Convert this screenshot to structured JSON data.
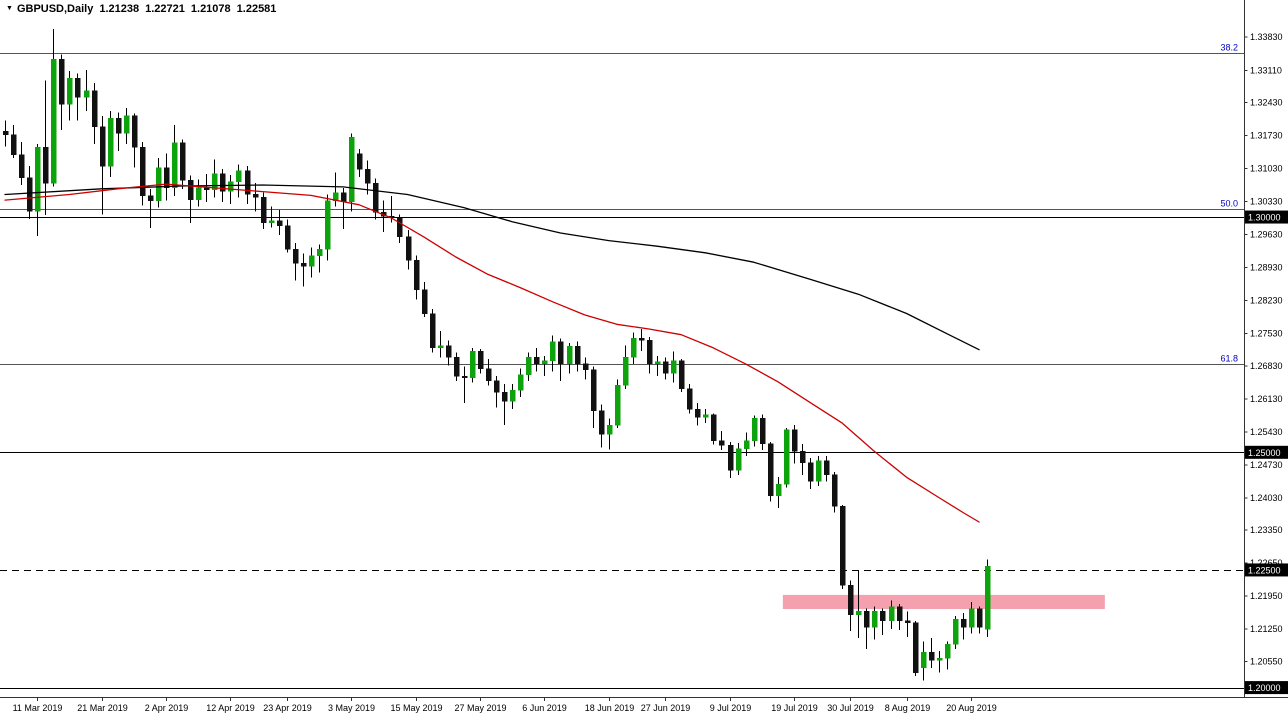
{
  "title": {
    "indicator_arrow": "▼",
    "symbol_period": "GBPUSD,Daily",
    "open": "1.21238",
    "high": "1.22721",
    "low": "1.21078",
    "close": "1.22581"
  },
  "colors": {
    "background": "#ffffff",
    "up_candle": "#0ca30c",
    "down_candle": "#111111",
    "wick": "#000000",
    "ma_slow": "#000000",
    "ma_fast": "#cc0000",
    "fib_line": "#555555",
    "fib_label": "#0000c0",
    "hline": "#000000",
    "dashed_line": "#000000",
    "rect_fill": "#f5a0ae",
    "axis_line": "#333333",
    "axis_text": "#000000",
    "tag_bg": "#000000",
    "tag_text": "#ffffff"
  },
  "chart_data": {
    "type": "candlestick",
    "symbol": "GBPUSD",
    "timeframe": "Daily",
    "y_axis": {
      "min": 1.198,
      "max": 1.344,
      "tick_labels": [
        "1.33830",
        "1.33110",
        "1.32430",
        "1.31730",
        "1.31030",
        "1.30330",
        "1.29630",
        "1.28930",
        "1.28230",
        "1.27530",
        "1.26830",
        "1.26130",
        "1.25430",
        "1.24730",
        "1.24030",
        "1.23350",
        "1.22650",
        "1.21950",
        "1.21250",
        "1.20550"
      ]
    },
    "x_axis": {
      "labels": [
        {
          "text": "11 Mar 2019",
          "index": 4
        },
        {
          "text": "21 Mar 2019",
          "index": 12
        },
        {
          "text": "2 Apr 2019",
          "index": 20
        },
        {
          "text": "12 Apr 2019",
          "index": 28
        },
        {
          "text": "23 Apr 2019",
          "index": 35
        },
        {
          "text": "3 May 2019",
          "index": 43
        },
        {
          "text": "15 May 2019",
          "index": 51
        },
        {
          "text": "27 May 2019",
          "index": 59
        },
        {
          "text": "6 Jun 2019",
          "index": 67
        },
        {
          "text": "18 Jun 2019",
          "index": 75
        },
        {
          "text": "27 Jun 2019",
          "index": 82
        },
        {
          "text": "9 Jul 2019",
          "index": 90
        },
        {
          "text": "19 Jul 2019",
          "index": 98
        },
        {
          "text": "30 Jul 2019",
          "index": 105
        },
        {
          "text": "8 Aug 2019",
          "index": 112
        },
        {
          "text": "20 Aug 2019",
          "index": 120
        }
      ]
    },
    "candles": [
      [
        1.3182,
        1.3205,
        1.315,
        1.3175
      ],
      [
        1.3175,
        1.3196,
        1.3125,
        1.3132
      ],
      [
        1.3132,
        1.316,
        1.3068,
        1.3084
      ],
      [
        1.3084,
        1.3109,
        1.2996,
        1.3012
      ],
      [
        1.3012,
        1.3155,
        1.296,
        1.3148
      ],
      [
        1.3148,
        1.329,
        1.3004,
        1.3072
      ],
      [
        1.3072,
        1.34,
        1.3065,
        1.3335
      ],
      [
        1.3335,
        1.3345,
        1.3185,
        1.324
      ],
      [
        1.324,
        1.331,
        1.3205,
        1.3295
      ],
      [
        1.3295,
        1.3305,
        1.3205,
        1.3255
      ],
      [
        1.3255,
        1.3312,
        1.3225,
        1.3268
      ],
      [
        1.3268,
        1.3285,
        1.3155,
        1.3192
      ],
      [
        1.3192,
        1.3215,
        1.3005,
        1.3108
      ],
      [
        1.3108,
        1.3225,
        1.3085,
        1.321
      ],
      [
        1.321,
        1.3222,
        1.314,
        1.3178
      ],
      [
        1.3178,
        1.3232,
        1.3155,
        1.3215
      ],
      [
        1.3215,
        1.322,
        1.3105,
        1.3148
      ],
      [
        1.3148,
        1.316,
        1.3025,
        1.3045
      ],
      [
        1.3045,
        1.306,
        1.2977,
        1.3035
      ],
      [
        1.3035,
        1.3125,
        1.302,
        1.3105
      ],
      [
        1.3105,
        1.3135,
        1.3035,
        1.3062
      ],
      [
        1.3062,
        1.3196,
        1.3045,
        1.3158
      ],
      [
        1.3158,
        1.3165,
        1.306,
        1.3078
      ],
      [
        1.3078,
        1.3088,
        1.2987,
        1.3037
      ],
      [
        1.3037,
        1.308,
        1.3022,
        1.3062
      ],
      [
        1.3062,
        1.3091,
        1.3032,
        1.3058
      ],
      [
        1.3058,
        1.3122,
        1.3042,
        1.3092
      ],
      [
        1.3092,
        1.3102,
        1.3032,
        1.3055
      ],
      [
        1.3055,
        1.3089,
        1.3028,
        1.3075
      ],
      [
        1.3075,
        1.3112,
        1.3042,
        1.3098
      ],
      [
        1.3098,
        1.3108,
        1.3028,
        1.3048
      ],
      [
        1.3048,
        1.3072,
        1.3012,
        1.3042
      ],
      [
        1.3042,
        1.3052,
        1.2975,
        1.2988
      ],
      [
        1.2988,
        1.3022,
        1.2978,
        1.2992
      ],
      [
        1.2992,
        1.3015,
        1.2962,
        1.2982
      ],
      [
        1.2982,
        1.2995,
        1.2925,
        1.2932
      ],
      [
        1.2932,
        1.2945,
        1.2865,
        1.2902
      ],
      [
        1.2902,
        1.2922,
        1.2852,
        1.2895
      ],
      [
        1.2895,
        1.2935,
        1.2872,
        1.2918
      ],
      [
        1.2918,
        1.2942,
        1.2882,
        1.2932
      ],
      [
        1.2932,
        1.3048,
        1.2908,
        1.3035
      ],
      [
        1.3035,
        1.3095,
        1.3022,
        1.3052
      ],
      [
        1.3052,
        1.3062,
        1.2975,
        1.3032
      ],
      [
        1.3032,
        1.3178,
        1.3012,
        1.317
      ],
      [
        1.3135,
        1.3145,
        1.3085,
        1.3102
      ],
      [
        1.3102,
        1.312,
        1.3048,
        1.3072
      ],
      [
        1.3072,
        1.3082,
        1.2995,
        1.301
      ],
      [
        1.301,
        1.3035,
        1.2968,
        1.3002
      ],
      [
        1.3002,
        1.3045,
        1.2988,
        1.2998
      ],
      [
        1.2998,
        1.3005,
        1.2945,
        1.2958
      ],
      [
        1.2958,
        1.2972,
        1.2888,
        1.2908
      ],
      [
        1.2908,
        1.2918,
        1.2825,
        1.2845
      ],
      [
        1.2845,
        1.2862,
        1.2788,
        1.2795
      ],
      [
        1.2795,
        1.2805,
        1.2712,
        1.2722
      ],
      [
        1.2722,
        1.2758,
        1.2702,
        1.2726
      ],
      [
        1.2726,
        1.2738,
        1.2685,
        1.2702
      ],
      [
        1.2702,
        1.2712,
        1.2652,
        1.2662
      ],
      [
        1.2662,
        1.2682,
        1.2605,
        1.2658
      ],
      [
        1.2658,
        1.2722,
        1.2648,
        1.2715
      ],
      [
        1.2715,
        1.272,
        1.2668,
        1.2678
      ],
      [
        1.2678,
        1.2698,
        1.2642,
        1.2652
      ],
      [
        1.2652,
        1.2662,
        1.2595,
        1.2628
      ],
      [
        1.2628,
        1.2645,
        1.2558,
        1.2608
      ],
      [
        1.2608,
        1.2645,
        1.2592,
        1.2632
      ],
      [
        1.2632,
        1.2678,
        1.2618,
        1.2665
      ],
      [
        1.2665,
        1.2712,
        1.2652,
        1.2702
      ],
      [
        1.2702,
        1.2722,
        1.2672,
        1.2688
      ],
      [
        1.2688,
        1.2705,
        1.2662,
        1.2695
      ],
      [
        1.2695,
        1.2748,
        1.2672,
        1.2735
      ],
      [
        1.2735,
        1.2742,
        1.2652,
        1.2688
      ],
      [
        1.2688,
        1.2732,
        1.2668,
        1.2725
      ],
      [
        1.2725,
        1.2735,
        1.2672,
        1.2688
      ],
      [
        1.2688,
        1.2702,
        1.2655,
        1.2675
      ],
      [
        1.2675,
        1.2682,
        1.2552,
        1.2588
      ],
      [
        1.2588,
        1.2602,
        1.251,
        1.2538
      ],
      [
        1.2538,
        1.2572,
        1.2506,
        1.2558
      ],
      [
        1.2558,
        1.2655,
        1.2552,
        1.2642
      ],
      [
        1.2642,
        1.2727,
        1.2635,
        1.2702
      ],
      [
        1.2702,
        1.2755,
        1.2688,
        1.2742
      ],
      [
        1.2742,
        1.2762,
        1.2715,
        1.2738
      ],
      [
        1.2738,
        1.2745,
        1.2668,
        1.2688
      ],
      [
        1.2688,
        1.2705,
        1.2662,
        1.2692
      ],
      [
        1.2692,
        1.2702,
        1.2655,
        1.2668
      ],
      [
        1.2668,
        1.2714,
        1.2648,
        1.2695
      ],
      [
        1.2695,
        1.2698,
        1.2628,
        1.2635
      ],
      [
        1.2635,
        1.2645,
        1.2582,
        1.2592
      ],
      [
        1.2592,
        1.2605,
        1.2557,
        1.2575
      ],
      [
        1.2575,
        1.2592,
        1.2562,
        1.258
      ],
      [
        1.258,
        1.2582,
        1.2517,
        1.2525
      ],
      [
        1.2525,
        1.2545,
        1.2505,
        1.2515
      ],
      [
        1.2515,
        1.2522,
        1.2445,
        1.2462
      ],
      [
        1.2462,
        1.252,
        1.2452,
        1.2508
      ],
      [
        1.2508,
        1.2542,
        1.2492,
        1.2525
      ],
      [
        1.2525,
        1.2578,
        1.2512,
        1.2572
      ],
      [
        1.2572,
        1.258,
        1.2505,
        1.2518
      ],
      [
        1.2518,
        1.2522,
        1.2396,
        1.2408
      ],
      [
        1.2408,
        1.2448,
        1.2382,
        1.2432
      ],
      [
        1.2432,
        1.2552,
        1.2425,
        1.2548
      ],
      [
        1.2548,
        1.2558,
        1.2476,
        1.2502
      ],
      [
        1.2502,
        1.2518,
        1.2452,
        1.2478
      ],
      [
        1.2478,
        1.2488,
        1.2422,
        1.2438
      ],
      [
        1.2438,
        1.2492,
        1.2428,
        1.2482
      ],
      [
        1.2482,
        1.2492,
        1.2438,
        1.2452
      ],
      [
        1.2452,
        1.2458,
        1.2372,
        1.2385
      ],
      [
        1.2385,
        1.2388,
        1.221,
        1.2218
      ],
      [
        1.2218,
        1.2228,
        1.212,
        1.2155
      ],
      [
        1.2155,
        1.225,
        1.2105,
        1.2162
      ],
      [
        1.2162,
        1.2168,
        1.2082,
        1.2128
      ],
      [
        1.2128,
        1.2172,
        1.2102,
        1.2162
      ],
      [
        1.2162,
        1.2168,
        1.2112,
        1.2142
      ],
      [
        1.2142,
        1.2185,
        1.2125,
        1.2172
      ],
      [
        1.2172,
        1.2178,
        1.2122,
        1.2142
      ],
      [
        1.2142,
        1.2162,
        1.2108,
        1.2138
      ],
      [
        1.2138,
        1.2142,
        1.2025,
        1.2032
      ],
      [
        1.2042,
        1.2098,
        1.2015,
        1.2075
      ],
      [
        1.2075,
        1.2105,
        1.2042,
        1.2058
      ],
      [
        1.2058,
        1.2078,
        1.2032,
        1.2062
      ],
      [
        1.2062,
        1.2098,
        1.2038,
        1.2092
      ],
      [
        1.2092,
        1.2152,
        1.2082,
        1.2145
      ],
      [
        1.2145,
        1.2158,
        1.2102,
        1.2128
      ],
      [
        1.2128,
        1.2182,
        1.2115,
        1.2168
      ],
      [
        1.2168,
        1.2172,
        1.2115,
        1.2128
      ],
      [
        1.21238,
        1.22721,
        1.21078,
        1.22581
      ]
    ],
    "overlays": {
      "ma_slow": {
        "name": "slow moving average",
        "points": [
          [
            0,
            1.3048
          ],
          [
            12,
            1.306
          ],
          [
            22,
            1.3066
          ],
          [
            32,
            1.3068
          ],
          [
            42,
            1.3064
          ],
          [
            50,
            1.3048
          ],
          [
            57,
            1.302
          ],
          [
            63,
            1.299
          ],
          [
            69,
            1.2966
          ],
          [
            75,
            1.295
          ],
          [
            81,
            1.2938
          ],
          [
            87,
            1.2924
          ],
          [
            93,
            1.2904
          ],
          [
            100,
            1.2868
          ],
          [
            106,
            1.2836
          ],
          [
            112,
            1.2795
          ],
          [
            117,
            1.2752
          ],
          [
            121,
            1.2718
          ]
        ]
      },
      "ma_fast": {
        "name": "fast moving average",
        "points": [
          [
            0,
            1.3036
          ],
          [
            8,
            1.3048
          ],
          [
            14,
            1.306
          ],
          [
            20,
            1.307
          ],
          [
            26,
            1.3062
          ],
          [
            32,
            1.3054
          ],
          [
            38,
            1.3046
          ],
          [
            44,
            1.3026
          ],
          [
            48,
            1.2998
          ],
          [
            52,
            1.2958
          ],
          [
            56,
            1.2915
          ],
          [
            60,
            1.2878
          ],
          [
            64,
            1.285
          ],
          [
            68,
            1.282
          ],
          [
            72,
            1.2792
          ],
          [
            76,
            1.2772
          ],
          [
            80,
            1.2762
          ],
          [
            84,
            1.275
          ],
          [
            88,
            1.2722
          ],
          [
            92,
            1.2688
          ],
          [
            96,
            1.265
          ],
          [
            100,
            1.2606
          ],
          [
            104,
            1.2562
          ],
          [
            108,
            1.2502
          ],
          [
            112,
            1.2447
          ],
          [
            116,
            1.2404
          ],
          [
            119,
            1.2372
          ],
          [
            121,
            1.2352
          ]
        ]
      },
      "fib_levels": [
        {
          "label": "38.2",
          "price": 1.3348
        },
        {
          "label": "50.0",
          "price": 1.3018
        },
        {
          "label": "61.8",
          "price": 1.2688
        }
      ],
      "hlines": [
        {
          "price": 1.3,
          "tag": "1.30000"
        },
        {
          "price": 1.25,
          "tag": "1.25000"
        },
        {
          "price": 1.2,
          "tag": "1.20000"
        }
      ],
      "dashed_line": {
        "price": 1.225,
        "tag": "1.22500"
      },
      "rectangle": {
        "start_index": 97,
        "end_index": 137,
        "price_top": 1.2197,
        "price_bottom": 1.2167
      }
    }
  }
}
